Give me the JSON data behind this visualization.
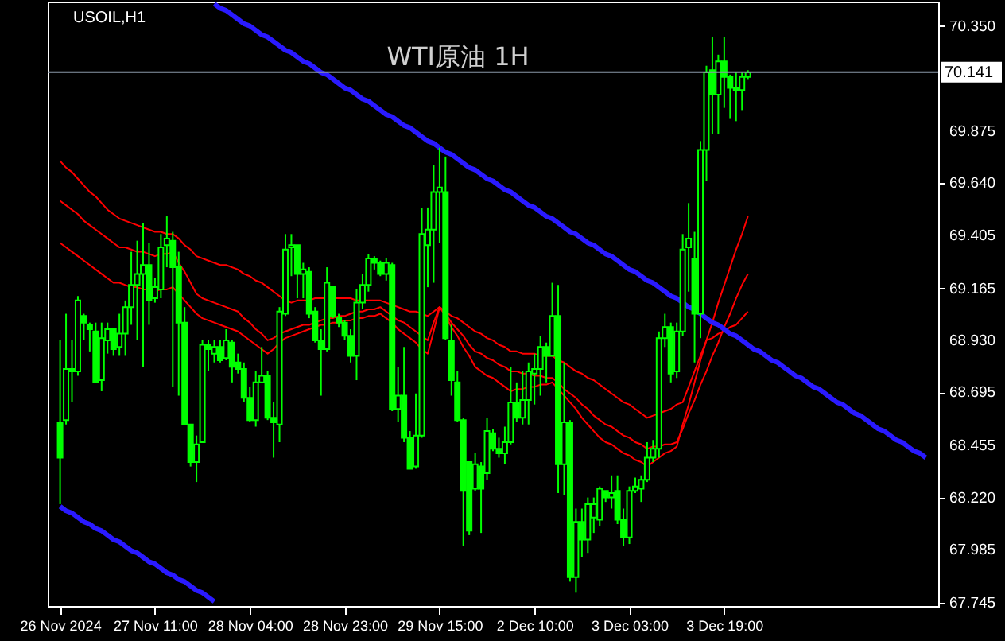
{
  "chart_data": {
    "type": "candlestick",
    "title": "WTI原油 1H",
    "annotations": [
      "USOIL,H1"
    ],
    "categories": [
      "26 Nov 2024",
      null,
      null,
      null,
      null,
      null,
      null,
      null,
      null,
      null,
      null,
      null,
      null,
      null,
      null,
      null,
      "27 Nov 11:00",
      null,
      null,
      null,
      null,
      null,
      null,
      null,
      null,
      null,
      null,
      null,
      null,
      null,
      null,
      null,
      "28 Nov 04:00",
      null,
      null,
      null,
      null,
      null,
      null,
      null,
      null,
      null,
      null,
      null,
      null,
      null,
      null,
      null,
      "28 Nov 23:00",
      null,
      null,
      null,
      null,
      null,
      null,
      null,
      null,
      null,
      null,
      null,
      null,
      null,
      null,
      null,
      "29 Nov 15:00",
      null,
      null,
      null,
      null,
      null,
      null,
      null,
      null,
      null,
      null,
      null,
      null,
      null,
      null,
      null,
      "2 Dec 10:00",
      null,
      null,
      null,
      null,
      null,
      null,
      null,
      null,
      null,
      null,
      null,
      null,
      null,
      null,
      null,
      "3 Dec 03:00",
      null,
      null,
      null,
      null,
      null,
      null,
      null,
      null,
      null,
      null,
      null,
      null,
      null,
      null,
      null,
      "3 Dec 19:00",
      null,
      null,
      null,
      null,
      null,
      null,
      null,
      null,
      null,
      null,
      null,
      null,
      null,
      null,
      null,
      null,
      null,
      null,
      null,
      null,
      null,
      null,
      null,
      null,
      null,
      null,
      null,
      null,
      null,
      null,
      null,
      null,
      null,
      null
    ],
    "ylim": [
      67.73,
      70.46
    ],
    "yticks": [
      67.745,
      67.985,
      {
        "value": 68.22,
        "label": "68.220"
      },
      68.455,
      68.695,
      {
        "value": 68.93,
        "label": "68.930"
      },
      69.165,
      69.405,
      {
        "value": 69.64,
        "label": "69.640"
      },
      69.875,
      {
        "value": 70.35,
        "label": "70.350"
      }
    ],
    "grid": false,
    "ref_lines": [
      {
        "axis": "y",
        "value": 70.141,
        "label": "70.141",
        "color": "#8a98a8"
      }
    ],
    "series": [
      {
        "color": "#00ff00",
        "ohlc": [
          [
            68.56,
            68.93,
            68.19,
            68.4
          ],
          [
            68.57,
            69.05,
            68.55,
            68.8
          ],
          [
            68.8,
            68.93,
            68.65,
            68.79
          ],
          [
            68.79,
            69.13,
            68.77,
            69.11
          ],
          [
            69.04,
            69.05,
            68.93,
            69.01
          ],
          [
            69.0,
            69.01,
            68.88,
            68.98
          ],
          [
            68.97,
            69.01,
            68.74,
            68.74
          ],
          [
            68.75,
            69.01,
            68.7,
            68.94
          ],
          [
            68.93,
            69.01,
            68.87,
            68.98
          ],
          [
            68.98,
            68.98,
            68.86,
            68.89
          ],
          [
            68.9,
            69.05,
            68.86,
            68.96
          ],
          [
            68.96,
            69.11,
            68.86,
            69.08
          ],
          [
            69.08,
            69.33,
            69.0,
            69.18
          ],
          [
            69.18,
            69.38,
            68.93,
            69.23
          ],
          [
            69.23,
            69.46,
            68.81,
            69.27
          ],
          [
            69.27,
            69.37,
            69.0,
            69.11
          ],
          [
            69.12,
            69.21,
            69.1,
            69.17
          ],
          [
            69.16,
            69.41,
            69.12,
            69.35
          ],
          [
            69.36,
            69.49,
            69.26,
            69.39
          ],
          [
            69.38,
            69.42,
            68.72,
            69.26
          ],
          [
            69.26,
            69.33,
            68.68,
            69.01
          ],
          [
            69.01,
            69.08,
            68.55,
            68.55
          ],
          [
            68.55,
            68.55,
            68.36,
            68.38
          ],
          [
            68.38,
            68.5,
            68.29,
            68.46
          ],
          [
            68.47,
            68.93,
            68.47,
            68.91
          ],
          [
            68.91,
            68.93,
            68.79,
            68.89
          ],
          [
            68.87,
            68.93,
            68.83,
            68.9
          ],
          [
            68.9,
            68.93,
            68.83,
            68.84
          ],
          [
            68.85,
            68.98,
            68.84,
            68.93
          ],
          [
            68.92,
            68.93,
            68.74,
            68.81
          ],
          [
            68.83,
            68.87,
            68.78,
            68.8
          ],
          [
            68.8,
            68.83,
            68.65,
            68.67
          ],
          [
            68.67,
            68.72,
            68.56,
            68.57
          ],
          [
            68.57,
            68.79,
            68.54,
            68.74
          ],
          [
            68.74,
            68.9,
            68.74,
            68.77
          ],
          [
            68.77,
            68.79,
            68.57,
            68.58
          ],
          [
            68.58,
            68.65,
            68.4,
            68.56
          ],
          [
            68.55,
            69.08,
            68.47,
            69.06
          ],
          [
            69.05,
            69.41,
            69.04,
            69.34
          ],
          [
            69.35,
            69.41,
            69.22,
            69.36
          ],
          [
            69.36,
            69.36,
            69.12,
            69.23
          ],
          [
            69.23,
            69.28,
            69.12,
            69.25
          ],
          [
            69.24,
            69.26,
            69.03,
            69.05
          ],
          [
            69.06,
            69.08,
            68.92,
            68.93
          ],
          [
            68.93,
            68.98,
            68.68,
            68.89
          ],
          [
            68.89,
            69.26,
            68.88,
            69.19
          ],
          [
            69.17,
            69.17,
            69.03,
            69.04
          ],
          [
            69.03,
            69.05,
            68.99,
            69.01
          ],
          [
            69.01,
            69.02,
            68.93,
            68.95
          ],
          [
            68.95,
            68.98,
            68.83,
            68.86
          ],
          [
            68.86,
            69.16,
            68.75,
            69.1
          ],
          [
            69.1,
            69.23,
            69.07,
            69.18
          ],
          [
            69.18,
            69.32,
            69.15,
            69.3
          ],
          [
            69.3,
            69.31,
            69.25,
            69.28
          ],
          [
            69.28,
            69.29,
            69.22,
            69.23
          ],
          [
            69.23,
            69.3,
            69.2,
            69.28
          ],
          [
            69.27,
            69.28,
            68.61,
            68.62
          ],
          [
            68.62,
            68.81,
            68.56,
            68.68
          ],
          [
            68.68,
            68.9,
            68.47,
            68.49
          ],
          [
            68.49,
            68.52,
            68.35,
            68.35
          ],
          [
            68.36,
            68.69,
            68.35,
            68.5
          ],
          [
            68.5,
            69.53,
            68.49,
            69.41
          ],
          [
            69.36,
            69.53,
            69.17,
            69.43
          ],
          [
            69.43,
            69.72,
            69.19,
            69.6
          ],
          [
            69.6,
            69.8,
            69.37,
            69.62
          ],
          [
            69.6,
            69.76,
            68.93,
            68.94
          ],
          [
            68.93,
            69.0,
            68.68,
            68.75
          ],
          [
            68.74,
            68.79,
            68.56,
            68.57
          ],
          [
            68.57,
            68.58,
            68.0,
            68.25
          ],
          [
            68.38,
            68.38,
            68.05,
            68.07
          ],
          [
            68.26,
            68.42,
            68.25,
            68.37
          ],
          [
            68.36,
            68.38,
            68.06,
            68.26
          ],
          [
            68.33,
            68.58,
            68.3,
            68.52
          ],
          [
            68.51,
            68.53,
            68.43,
            68.44
          ],
          [
            68.44,
            68.49,
            68.4,
            68.42
          ],
          [
            68.42,
            68.54,
            68.37,
            68.47
          ],
          [
            68.47,
            68.81,
            68.46,
            68.65
          ],
          [
            68.65,
            68.74,
            68.56,
            68.58
          ],
          [
            68.58,
            68.79,
            68.55,
            68.66
          ],
          [
            68.66,
            68.83,
            68.55,
            68.79
          ],
          [
            68.78,
            68.87,
            68.64,
            68.8
          ],
          [
            68.8,
            68.95,
            68.68,
            68.9
          ],
          [
            68.9,
            68.92,
            68.74,
            68.86
          ],
          [
            68.86,
            69.19,
            68.86,
            69.04
          ],
          [
            69.04,
            69.18,
            68.24,
            68.37
          ],
          [
            68.37,
            68.83,
            68.23,
            68.56
          ],
          [
            68.56,
            68.57,
            67.84,
            67.86
          ],
          [
            67.86,
            68.17,
            67.79,
            68.11
          ],
          [
            68.11,
            68.17,
            67.95,
            68.03
          ],
          [
            68.03,
            68.22,
            67.97,
            68.19
          ],
          [
            68.13,
            68.22,
            68.06,
            68.19
          ],
          [
            68.12,
            68.27,
            68.09,
            68.26
          ],
          [
            68.25,
            68.25,
            68.2,
            68.22
          ],
          [
            68.22,
            68.32,
            68.17,
            68.24
          ],
          [
            68.25,
            68.32,
            68.1,
            68.12
          ],
          [
            68.12,
            68.17,
            68.0,
            68.04
          ],
          [
            68.04,
            68.27,
            68.01,
            68.25
          ],
          [
            68.25,
            68.31,
            68.24,
            68.27
          ],
          [
            68.26,
            68.32,
            68.2,
            68.3
          ],
          [
            68.3,
            68.47,
            68.29,
            68.4
          ],
          [
            68.4,
            68.48,
            68.38,
            68.44
          ],
          [
            68.44,
            68.97,
            68.4,
            68.94
          ],
          [
            68.94,
            69.05,
            68.9,
            68.99
          ],
          [
            68.99,
            69.01,
            68.74,
            68.78
          ],
          [
            68.79,
            69.01,
            68.76,
            68.97
          ],
          [
            68.97,
            69.41,
            68.95,
            69.34
          ],
          [
            69.35,
            69.55,
            69.15,
            69.39
          ],
          [
            69.3,
            69.42,
            68.83,
            69.05
          ],
          [
            69.05,
            69.83,
            68.94,
            69.79
          ],
          [
            69.79,
            70.17,
            69.65,
            70.14
          ],
          [
            70.15,
            70.3,
            69.86,
            70.04
          ],
          [
            70.04,
            70.22,
            69.86,
            70.19
          ],
          [
            70.19,
            70.3,
            69.98,
            70.12
          ],
          [
            70.12,
            70.13,
            69.93,
            70.07
          ],
          [
            70.07,
            70.14,
            69.92,
            70.06
          ],
          [
            70.06,
            70.14,
            69.97,
            70.12
          ],
          [
            70.12,
            70.15,
            70.11,
            70.14
          ],
          null,
          null,
          null,
          null,
          null,
          null,
          null,
          null,
          null,
          null,
          null,
          null,
          null,
          null,
          null,
          null,
          null,
          null,
          null,
          null,
          null,
          null,
          null,
          null,
          null,
          null,
          null,
          null,
          null,
          null
        ]
      },
      {
        "type": "line",
        "color": "#ff0000",
        "values": [
          69.74,
          69.71,
          69.69,
          69.66,
          69.63,
          69.6,
          69.58,
          69.55,
          69.52,
          69.5,
          69.48,
          69.47,
          69.46,
          69.45,
          69.44,
          69.43,
          69.42,
          69.42,
          69.41,
          69.41,
          69.39,
          69.36,
          69.34,
          69.31,
          69.3,
          69.29,
          69.28,
          69.27,
          69.27,
          69.26,
          69.25,
          69.23,
          69.22,
          69.2,
          69.19,
          69.17,
          69.15,
          69.13,
          69.11,
          69.1,
          69.11,
          69.11,
          69.11,
          69.12,
          69.12,
          69.12,
          69.12,
          69.12,
          69.12,
          69.12,
          69.11,
          69.11,
          69.11,
          69.11,
          69.11,
          69.1,
          69.09,
          69.08,
          69.07,
          69.06,
          69.06,
          69.05,
          69.04,
          69.06,
          69.08,
          69.06,
          69.04,
          69.03,
          69.01,
          68.99,
          68.97,
          68.96,
          68.94,
          68.93,
          68.91,
          68.9,
          68.88,
          68.88,
          68.87,
          68.87,
          68.87,
          68.86,
          68.86,
          68.86,
          68.84,
          68.83,
          68.81,
          68.79,
          68.78,
          68.76,
          68.75,
          68.73,
          68.71,
          68.69,
          68.67,
          68.65,
          68.64,
          68.62,
          68.6,
          68.58,
          68.59,
          68.6,
          68.61,
          68.62,
          68.64,
          68.65,
          68.72,
          68.79,
          68.86,
          68.93,
          69.01,
          69.1,
          69.18,
          69.26,
          69.34,
          69.41,
          69.49,
          null,
          null,
          null,
          null,
          null,
          null,
          null,
          null,
          null,
          null,
          null,
          null,
          null,
          null,
          null,
          null,
          null,
          null,
          null,
          null,
          null,
          null,
          null,
          null,
          null,
          null,
          null,
          null,
          null,
          null
        ]
      },
      {
        "type": "line",
        "color": "#ff0000",
        "values": [
          69.56,
          69.54,
          69.52,
          69.5,
          69.47,
          69.45,
          69.43,
          69.41,
          69.39,
          69.37,
          69.35,
          69.35,
          69.34,
          69.33,
          69.33,
          69.32,
          69.31,
          69.32,
          69.32,
          69.33,
          69.28,
          69.24,
          69.19,
          69.14,
          69.12,
          69.11,
          69.1,
          69.09,
          69.08,
          69.07,
          69.06,
          69.03,
          69.01,
          68.98,
          68.96,
          68.93,
          68.94,
          68.96,
          68.97,
          68.98,
          68.99,
          69.0,
          69.0,
          69.01,
          69.02,
          69.03,
          69.03,
          69.04,
          69.04,
          69.05,
          69.06,
          69.06,
          69.07,
          69.07,
          69.08,
          69.06,
          69.04,
          69.02,
          69.01,
          68.99,
          68.97,
          68.95,
          68.93,
          69.01,
          69.08,
          69.05,
          69.01,
          68.98,
          68.95,
          68.91,
          68.88,
          68.87,
          68.85,
          68.84,
          68.82,
          68.81,
          68.79,
          68.79,
          68.78,
          68.78,
          68.77,
          68.77,
          68.76,
          68.76,
          68.74,
          68.71,
          68.69,
          68.67,
          68.64,
          68.62,
          68.59,
          68.57,
          68.55,
          68.54,
          68.52,
          68.5,
          68.49,
          68.47,
          68.46,
          68.44,
          68.45,
          68.45,
          68.46,
          68.46,
          68.47,
          68.53,
          68.6,
          68.66,
          68.73,
          68.79,
          68.86,
          68.92,
          68.99,
          69.05,
          69.12,
          69.18,
          69.23,
          null,
          null,
          null,
          null,
          null,
          null,
          null,
          null,
          null,
          null,
          null,
          null,
          null,
          null,
          null,
          null,
          null,
          null,
          null,
          null,
          null,
          null,
          null,
          null,
          null,
          null,
          null,
          null,
          null,
          null
        ]
      },
      {
        "type": "line",
        "color": "#ff0000",
        "values": [
          69.37,
          69.35,
          69.33,
          69.31,
          69.29,
          69.27,
          69.25,
          69.23,
          69.21,
          69.19,
          69.19,
          69.18,
          69.17,
          69.17,
          69.16,
          69.16,
          69.15,
          69.16,
          69.16,
          69.17,
          69.14,
          69.11,
          69.08,
          69.05,
          69.03,
          69.02,
          69.01,
          69.0,
          68.99,
          68.98,
          68.97,
          68.95,
          68.93,
          68.91,
          68.89,
          68.87,
          68.89,
          68.92,
          68.94,
          68.95,
          68.96,
          68.97,
          68.98,
          68.99,
          69.0,
          69.0,
          69.01,
          69.01,
          69.02,
          69.02,
          69.03,
          69.03,
          69.04,
          69.04,
          69.05,
          69.03,
          69.01,
          68.98,
          68.96,
          68.94,
          68.92,
          68.89,
          68.87,
          68.97,
          69.08,
          69.04,
          68.99,
          68.95,
          68.9,
          68.86,
          68.81,
          68.79,
          68.77,
          68.76,
          68.74,
          68.72,
          68.7,
          68.71,
          68.71,
          68.72,
          68.72,
          68.73,
          68.73,
          68.74,
          68.71,
          68.68,
          68.65,
          68.62,
          68.58,
          68.55,
          68.52,
          68.49,
          68.47,
          68.46,
          68.44,
          68.42,
          68.41,
          68.39,
          68.38,
          68.36,
          68.38,
          68.4,
          68.42,
          68.43,
          68.45,
          68.55,
          68.64,
          68.74,
          68.84,
          68.93,
          68.94,
          68.96,
          68.97,
          68.99,
          69.0,
          69.03,
          69.06,
          null,
          null,
          null,
          null,
          null,
          null,
          null,
          null,
          null,
          null,
          null,
          null,
          null,
          null,
          null,
          null,
          null,
          null,
          null,
          null,
          null,
          null,
          null,
          null,
          null,
          null,
          null,
          null,
          null,
          null
        ]
      },
      {
        "type": "line",
        "color": "#2a1aff",
        "values": [
          null,
          null,
          null,
          null,
          null,
          null,
          null,
          null,
          null,
          null,
          null,
          null,
          null,
          null,
          null,
          null,
          null,
          null,
          null,
          null,
          null,
          null,
          null,
          null,
          null,
          null,
          70.45,
          70.43,
          70.42,
          70.4,
          70.38,
          70.36,
          70.35,
          70.33,
          70.31,
          70.3,
          70.28,
          70.26,
          70.24,
          70.23,
          70.21,
          70.19,
          70.18,
          70.16,
          70.14,
          70.13,
          70.11,
          70.09,
          70.07,
          70.06,
          70.04,
          70.02,
          70.01,
          69.99,
          69.97,
          69.95,
          69.94,
          69.92,
          69.9,
          69.89,
          69.87,
          69.85,
          69.83,
          69.82,
          69.8,
          69.78,
          69.77,
          69.75,
          69.73,
          69.71,
          69.7,
          69.68,
          69.66,
          69.65,
          69.63,
          69.61,
          69.6,
          69.58,
          69.56,
          69.54,
          69.53,
          69.51,
          69.49,
          69.48,
          69.46,
          69.44,
          69.42,
          69.41,
          69.39,
          69.37,
          69.36,
          69.34,
          69.32,
          69.31,
          69.29,
          69.27,
          69.25,
          69.24,
          69.22,
          69.2,
          69.19,
          69.17,
          69.15,
          69.13,
          69.12,
          69.1,
          69.08,
          69.07,
          69.05,
          69.03,
          69.01,
          69.0,
          68.98,
          68.96,
          68.95,
          68.93,
          68.91,
          68.89,
          68.88,
          68.86,
          68.84,
          68.83,
          68.81,
          68.79,
          68.77,
          68.76,
          68.74,
          68.72,
          68.71,
          68.69,
          68.67,
          68.65,
          68.64,
          68.62,
          68.6,
          68.59,
          68.57,
          68.55,
          68.53,
          68.52,
          68.5,
          68.48,
          68.47,
          68.45,
          68.43,
          68.42,
          68.4
        ]
      },
      {
        "type": "line",
        "color": "#2a1aff",
        "values": [
          68.18,
          68.16,
          68.15,
          68.13,
          68.11,
          68.1,
          68.08,
          68.07,
          68.05,
          68.03,
          68.02,
          68.0,
          67.98,
          67.97,
          67.95,
          67.93,
          67.92,
          67.9,
          67.88,
          67.87,
          67.85,
          67.84,
          67.82,
          67.8,
          67.79,
          67.77,
          67.75,
          null,
          null,
          null,
          null,
          null,
          null,
          null,
          null,
          null,
          null,
          null,
          null,
          null,
          null,
          null,
          null,
          null,
          null,
          null,
          null,
          null,
          null,
          null,
          null,
          null,
          null,
          null,
          null,
          null,
          null,
          null,
          null,
          null,
          null,
          null,
          null,
          null,
          null,
          null,
          null,
          null,
          null,
          null,
          null,
          null,
          null,
          null,
          null,
          null,
          null,
          null,
          null,
          null,
          null,
          null,
          null,
          null,
          null,
          null,
          null,
          null,
          null,
          null,
          null,
          null,
          null,
          null,
          null,
          null,
          null,
          null,
          null,
          null,
          null,
          null,
          null,
          null,
          null,
          null,
          null,
          null,
          null,
          null,
          null,
          null,
          null,
          null,
          null,
          null,
          null,
          null,
          null,
          null,
          null,
          null,
          null,
          null,
          null,
          null,
          null,
          null,
          null,
          null,
          null,
          null,
          null,
          null,
          null,
          null,
          null,
          null,
          null,
          null,
          null,
          null,
          null,
          null,
          null,
          null,
          null
        ]
      }
    ]
  }
}
